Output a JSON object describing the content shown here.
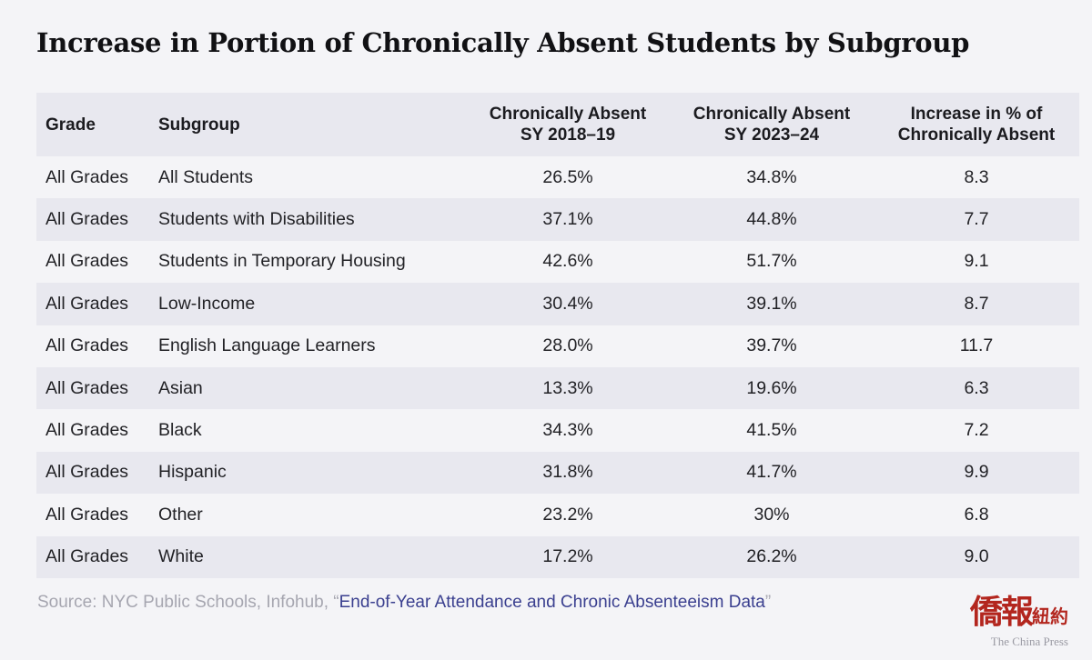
{
  "title": "Increase in Portion of Chronically Absent Students by Subgroup",
  "table": {
    "headers": {
      "grade": "Grade",
      "subgroup": "Subgroup",
      "col1_line1": "Chronically Absent",
      "col1_line2": "SY 2018–19",
      "col2_line1": "Chronically Absent",
      "col2_line2": "SY 2023–24",
      "col3_line1": "Increase in % of",
      "col3_line2": "Chronically Absent"
    },
    "rows": [
      {
        "grade": "All Grades",
        "subgroup": "All Students",
        "sy2018": "26.5%",
        "sy2023": "34.8%",
        "increase": "8.3"
      },
      {
        "grade": "All Grades",
        "subgroup": "Students with Disabilities",
        "sy2018": "37.1%",
        "sy2023": "44.8%",
        "increase": "7.7"
      },
      {
        "grade": "All Grades",
        "subgroup": "Students in Temporary Housing",
        "sy2018": "42.6%",
        "sy2023": "51.7%",
        "increase": "9.1"
      },
      {
        "grade": "All Grades",
        "subgroup": "Low-Income",
        "sy2018": "30.4%",
        "sy2023": "39.1%",
        "increase": "8.7"
      },
      {
        "grade": "All Grades",
        "subgroup": "English Language Learners",
        "sy2018": "28.0%",
        "sy2023": "39.7%",
        "increase": "11.7"
      },
      {
        "grade": "All Grades",
        "subgroup": "Asian",
        "sy2018": "13.3%",
        "sy2023": "19.6%",
        "increase": "6.3"
      },
      {
        "grade": "All Grades",
        "subgroup": "Black",
        "sy2018": "34.3%",
        "sy2023": "41.5%",
        "increase": "7.2"
      },
      {
        "grade": "All Grades",
        "subgroup": "Hispanic",
        "sy2018": "31.8%",
        "sy2023": "41.7%",
        "increase": "9.9"
      },
      {
        "grade": "All Grades",
        "subgroup": "Other",
        "sy2018": "23.2%",
        "sy2023": "30%",
        "increase": "6.8"
      },
      {
        "grade": "All Grades",
        "subgroup": "White",
        "sy2018": "17.2%",
        "sy2023": "26.2%",
        "increase": "9.0"
      }
    ]
  },
  "source": {
    "prefix": "Source: NYC Public Schools, Infohub, “",
    "link_text": "End-of-Year Attendance and Chronic Absenteeism Data",
    "suffix": "”"
  },
  "logo": {
    "glyphs": "僑報",
    "glyphs_small": "紐約",
    "subtitle": "The China Press"
  },
  "colors": {
    "background": "#f4f4f7",
    "stripe": "#e8e8ef",
    "link": "#3a3f8f",
    "logo_red": "#b3261e"
  },
  "chart_data": {
    "type": "table",
    "title": "Increase in Portion of Chronically Absent Students by Subgroup",
    "columns": [
      "Grade",
      "Subgroup",
      "Chronically Absent SY 2018–19",
      "Chronically Absent SY 2023–24",
      "Increase in % of Chronically Absent"
    ],
    "rows": [
      [
        "All Grades",
        "All Students",
        "26.5%",
        "34.8%",
        "8.3"
      ],
      [
        "All Grades",
        "Students with Disabilities",
        "37.1%",
        "44.8%",
        "7.7"
      ],
      [
        "All Grades",
        "Students in Temporary Housing",
        "42.6%",
        "51.7%",
        "9.1"
      ],
      [
        "All Grades",
        "Low-Income",
        "30.4%",
        "39.1%",
        "8.7"
      ],
      [
        "All Grades",
        "English Language Learners",
        "28.0%",
        "39.7%",
        "11.7"
      ],
      [
        "All Grades",
        "Asian",
        "13.3%",
        "19.6%",
        "6.3"
      ],
      [
        "All Grades",
        "Black",
        "34.3%",
        "41.5%",
        "7.2"
      ],
      [
        "All Grades",
        "Hispanic",
        "31.8%",
        "41.7%",
        "9.9"
      ],
      [
        "All Grades",
        "Other",
        "23.2%",
        "30%",
        "6.8"
      ],
      [
        "All Grades",
        "White",
        "17.2%",
        "26.2%",
        "9.0"
      ]
    ]
  }
}
